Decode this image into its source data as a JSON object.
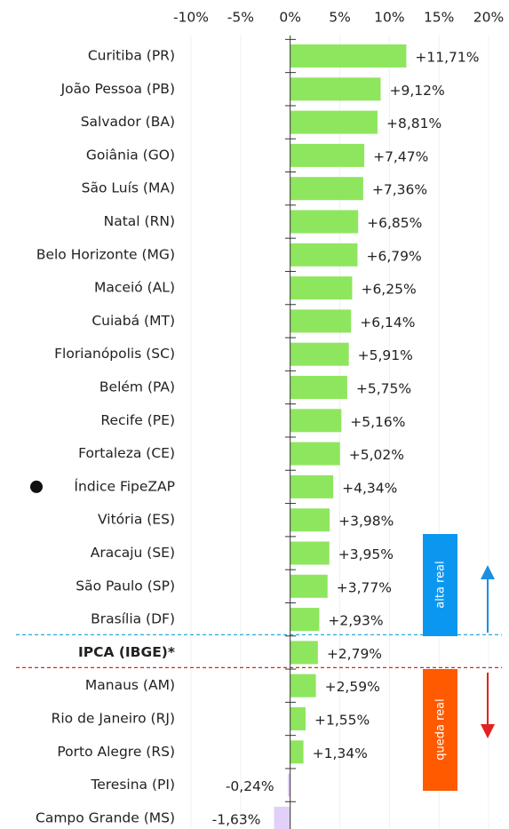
{
  "chart_data": {
    "type": "hbar",
    "categories": [
      "Curitiba (PR)",
      "João Pessoa (PB)",
      "Salvador (BA)",
      "Goiânia (GO)",
      "São Luís (MA)",
      "Natal (RN)",
      "Belo Horizonte (MG)",
      "Maceió (AL)",
      "Cuiabá (MT)",
      "Florianópolis (SC)",
      "Belém (PA)",
      "Recife (PE)",
      "Fortaleza (CE)",
      "Índice FipeZAP",
      "Vitória (ES)",
      "Aracaju (SE)",
      "São Paulo (SP)",
      "Brasília (DF)",
      "IPCA (IBGE)*",
      "Manaus (AM)",
      "Rio de Janeiro (RJ)",
      "Porto Alegre (RS)",
      "Teresina (PI)",
      "Campo Grande (MS)"
    ],
    "values": [
      11.71,
      9.12,
      8.81,
      7.47,
      7.36,
      6.85,
      6.79,
      6.25,
      6.14,
      5.91,
      5.75,
      5.16,
      5.02,
      4.34,
      3.98,
      3.95,
      3.77,
      2.93,
      2.79,
      2.59,
      1.55,
      1.34,
      -0.24,
      -1.63
    ],
    "value_labels": [
      "+11,71%",
      "+9,12%",
      "+8,81%",
      "+7,47%",
      "+7,36%",
      "+6,85%",
      "+6,79%",
      "+6,25%",
      "+6,14%",
      "+5,91%",
      "+5,75%",
      "+5,16%",
      "+5,02%",
      "+4,34%",
      "+3,98%",
      "+3,95%",
      "+3,77%",
      "+2,93%",
      "+2,79%",
      "+2,59%",
      "+1,55%",
      "+1,34%",
      "-0,24%",
      "-1,63%"
    ],
    "positive_color": "#8ee65f",
    "negative_color": "#e2d0fb",
    "xlim": [
      -10,
      20
    ],
    "xticks": [
      {
        "value": -10,
        "label": "-10%"
      },
      {
        "value": -5,
        "label": "-5%"
      },
      {
        "value": 0,
        "label": "0%"
      },
      {
        "value": 5,
        "label": "5%"
      },
      {
        "value": 10,
        "label": "10%"
      },
      {
        "value": 15,
        "label": "15%"
      },
      {
        "value": 20,
        "label": "20%"
      }
    ],
    "grid": true,
    "annotations": [
      "alta real",
      "queda real"
    ]
  }
}
